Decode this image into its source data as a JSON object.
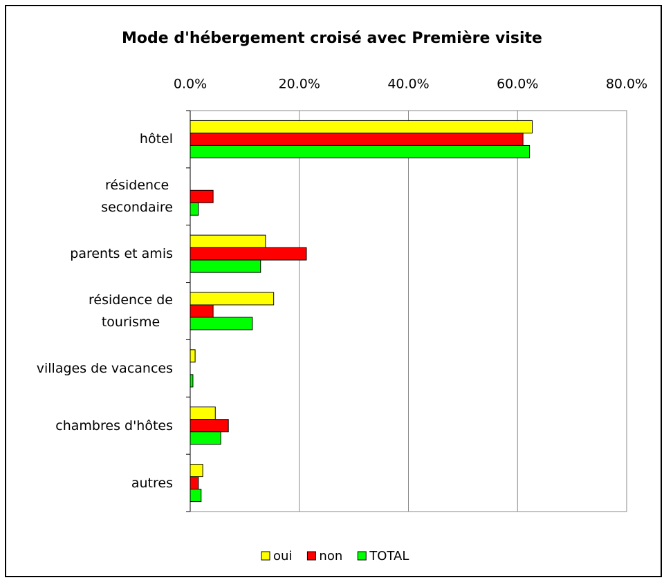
{
  "chart_data": {
    "type": "barh",
    "title": "Mode d'hébergement croisé avec Première visite",
    "categories": [
      "hôtel",
      "résidence\nsecondaire",
      "parents et amis",
      "résidence de\ntourisme",
      "villages de vacances",
      "chambres d'hôtes",
      "autres"
    ],
    "series": [
      {
        "name": "oui",
        "color": "#ffff00",
        "values": [
          62.7,
          0,
          13.8,
          15.3,
          0.9,
          4.6,
          2.3
        ]
      },
      {
        "name": "non",
        "color": "#ff0000",
        "values": [
          61.0,
          4.2,
          21.3,
          4.2,
          0,
          7.0,
          1.5
        ]
      },
      {
        "name": "TOTAL",
        "color": "#00ff00",
        "values": [
          62.2,
          1.5,
          12.9,
          11.4,
          0.5,
          5.6,
          2.0
        ]
      }
    ],
    "xlim": [
      0,
      80
    ],
    "xticks": [
      {
        "value": 0,
        "label": "0.0%"
      },
      {
        "value": 20,
        "label": "20.0%"
      },
      {
        "value": 40,
        "label": "40.0%"
      },
      {
        "value": 60,
        "label": "60.0%"
      },
      {
        "value": 80,
        "label": "80.0%"
      }
    ],
    "grid": true,
    "legend": "bottom"
  }
}
